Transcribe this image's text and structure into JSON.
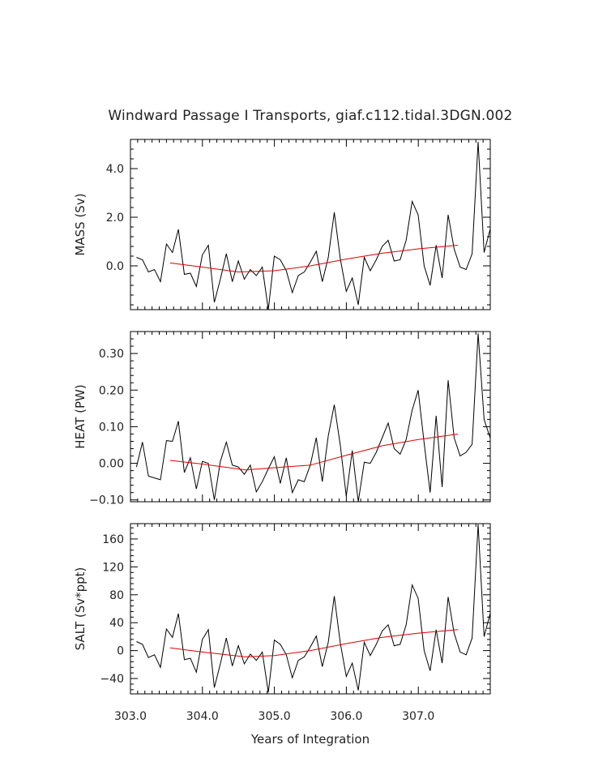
{
  "title": "Windward Passage I Transports, giaf.c112.tidal.3DGN.002",
  "xlabel": "Years of Integration",
  "colors": {
    "raw": "#000000",
    "smoothed": "#e00000"
  },
  "chart_data": [
    {
      "type": "line",
      "ylabel": "MASS (Sv)",
      "xlim": [
        303.0,
        308.0
      ],
      "ylim": [
        -1.8,
        5.2
      ],
      "xticks": [
        303.0,
        304.0,
        305.0,
        306.0,
        307.0
      ],
      "xtick_labels": [
        "303.0",
        "304.0",
        "305.0",
        "306.0",
        "307.0"
      ],
      "yticks": [
        0.0,
        2.0,
        4.0
      ],
      "ytick_labels": [
        "0.0",
        "2.0",
        "4.0"
      ],
      "series": [
        {
          "x0": 303.083,
          "dx": 0.0833,
          "values": [
            0.35,
            0.25,
            -0.25,
            -0.15,
            -0.65,
            0.9,
            0.55,
            1.5,
            -0.35,
            -0.3,
            -0.85,
            0.45,
            0.85,
            -1.5,
            -0.55,
            0.5,
            -0.65,
            0.2,
            -0.55,
            -0.15,
            -0.4,
            -0.05,
            -1.8,
            0.4,
            0.25,
            -0.2,
            -1.1,
            -0.4,
            -0.25,
            0.15,
            0.6,
            -0.65,
            0.35,
            2.2,
            0.3,
            -1.05,
            -0.5,
            -1.6,
            0.35,
            -0.2,
            0.25,
            0.8,
            1.05,
            0.2,
            0.25,
            1.05,
            2.65,
            2.1,
            0.0,
            -0.8,
            0.85,
            -0.5,
            2.1,
            0.7,
            -0.05,
            -0.15,
            0.5,
            5.1,
            0.55,
            1.5
          ]
        },
        {
          "x": [
            303.55,
            304.0,
            304.5,
            305.0,
            305.5,
            306.0,
            306.5,
            307.0,
            307.55
          ],
          "values": [
            0.12,
            -0.05,
            -0.25,
            -0.2,
            0.0,
            0.28,
            0.52,
            0.7,
            0.85
          ]
        }
      ]
    },
    {
      "type": "line",
      "ylabel": "HEAT (PW)",
      "xlim": [
        303.0,
        308.0
      ],
      "ylim": [
        -0.105,
        0.36
      ],
      "xticks": [
        303.0,
        304.0,
        305.0,
        306.0,
        307.0
      ],
      "xtick_labels": [
        "303.0",
        "304.0",
        "305.0",
        "306.0",
        "307.0"
      ],
      "yticks": [
        -0.1,
        0.0,
        0.1,
        0.2,
        0.3
      ],
      "ytick_labels": [
        "−0.10",
        "0.00",
        "0.10",
        "0.20",
        "0.30"
      ],
      "series": [
        {
          "x0": 303.083,
          "dx": 0.0833,
          "values": [
            -0.01,
            0.058,
            -0.035,
            -0.04,
            -0.045,
            0.062,
            0.06,
            0.115,
            -0.025,
            0.015,
            -0.07,
            0.005,
            0.0,
            -0.1,
            0.005,
            0.058,
            -0.005,
            -0.01,
            -0.03,
            -0.005,
            -0.078,
            -0.05,
            -0.015,
            0.018,
            -0.055,
            0.015,
            -0.08,
            -0.045,
            -0.05,
            -0.005,
            0.07,
            -0.05,
            0.075,
            0.16,
            0.05,
            -0.09,
            0.035,
            -0.105,
            0.003,
            0.0,
            0.03,
            0.07,
            0.11,
            0.04,
            0.025,
            0.065,
            0.145,
            0.2,
            0.055,
            -0.08,
            0.13,
            -0.065,
            0.227,
            0.07,
            0.02,
            0.03,
            0.052,
            0.355,
            0.12,
            0.07
          ]
        },
        {
          "x": [
            303.55,
            304.0,
            304.6,
            305.0,
            305.5,
            306.0,
            306.5,
            307.0,
            307.55
          ],
          "values": [
            0.008,
            -0.002,
            -0.018,
            -0.012,
            -0.005,
            0.022,
            0.048,
            0.065,
            0.08
          ]
        }
      ]
    },
    {
      "type": "line",
      "ylabel": "SALT (Sv*ppt)",
      "xlim": [
        303.0,
        308.0
      ],
      "ylim": [
        -62,
        182
      ],
      "xticks": [
        303.0,
        304.0,
        305.0,
        306.0,
        307.0
      ],
      "xtick_labels": [
        "303.0",
        "304.0",
        "305.0",
        "306.0",
        "307.0"
      ],
      "yticks": [
        -40,
        0,
        40,
        80,
        120,
        160
      ],
      "ytick_labels": [
        "−40",
        "0",
        "40",
        "80",
        "120",
        "160"
      ],
      "series": [
        {
          "x0": 303.083,
          "dx": 0.0833,
          "values": [
            13,
            9,
            -10,
            -6,
            -24,
            31,
            19,
            53,
            -13,
            -11,
            -31,
            16,
            30,
            -53,
            -19,
            18,
            -22,
            7,
            -19,
            -5,
            -14,
            -2,
            -60,
            15,
            9,
            -6,
            -39,
            -14,
            -9,
            5,
            21,
            -23,
            12,
            78,
            11,
            -37,
            -18,
            -57,
            12,
            -7,
            9,
            28,
            37,
            7,
            9,
            37,
            94,
            75,
            0,
            -29,
            30,
            -18,
            77,
            25,
            -2,
            -6,
            18,
            181,
            20,
            53
          ]
        },
        {
          "x": [
            303.55,
            304.0,
            304.6,
            305.0,
            305.5,
            306.0,
            306.5,
            307.0,
            307.55
          ],
          "values": [
            4,
            -2,
            -9,
            -7,
            0,
            10,
            19,
            25,
            30
          ]
        }
      ]
    }
  ]
}
